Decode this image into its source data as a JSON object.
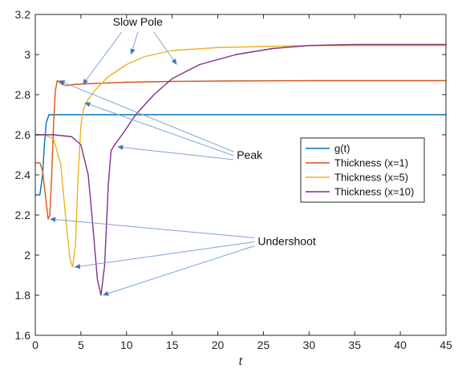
{
  "chart_data": {
    "type": "line",
    "title": "",
    "xlabel": "t",
    "ylabel": "",
    "xlim": [
      0,
      45
    ],
    "ylim": [
      1.6,
      3.2
    ],
    "xticks": [
      0,
      5,
      10,
      15,
      20,
      25,
      30,
      35,
      40,
      45
    ],
    "yticks": [
      1.6,
      1.8,
      2.0,
      2.2,
      2.4,
      2.6,
      2.8,
      3.0,
      3.2
    ],
    "ytick_labels": [
      "1.6",
      "1.8",
      "2",
      "2.2",
      "2.4",
      "2.6",
      "2.8",
      "3",
      "3.2"
    ],
    "grid": false,
    "legend_position": "right-middle",
    "series": [
      {
        "name": "g(t)",
        "color": "#0072BD",
        "x": [
          0,
          0.5,
          0.8,
          1.0,
          1.2,
          1.5,
          2.0,
          45
        ],
        "y": [
          2.3,
          2.3,
          2.4,
          2.55,
          2.66,
          2.7,
          2.7,
          2.7
        ]
      },
      {
        "name": "Thickness (x=1)",
        "color": "#D95319",
        "x": [
          0,
          0.5,
          0.8,
          1.1,
          1.4,
          1.6,
          1.8,
          2.0,
          2.2,
          2.4,
          2.7,
          3.0,
          3.5,
          4.0,
          6,
          10,
          15,
          20,
          30,
          45
        ],
        "y": [
          2.46,
          2.46,
          2.42,
          2.3,
          2.18,
          2.2,
          2.4,
          2.65,
          2.82,
          2.87,
          2.86,
          2.85,
          2.845,
          2.85,
          2.855,
          2.862,
          2.866,
          2.868,
          2.87,
          2.87
        ]
      },
      {
        "name": "Thickness (x=5)",
        "color": "#EDB120",
        "x": [
          0,
          1,
          2,
          2.8,
          3.3,
          3.8,
          4.1,
          4.4,
          4.7,
          5.0,
          5.3,
          5.7,
          6.5,
          8,
          10,
          12,
          15,
          20,
          25,
          30,
          45
        ],
        "y": [
          2.6,
          2.6,
          2.58,
          2.45,
          2.2,
          1.98,
          1.94,
          2.05,
          2.4,
          2.65,
          2.73,
          2.77,
          2.82,
          2.89,
          2.95,
          2.99,
          3.02,
          3.035,
          3.04,
          3.045,
          3.045
        ]
      },
      {
        "name": "Thickness (x=10)",
        "color": "#7E2F8E",
        "x": [
          0,
          2,
          4,
          5,
          5.8,
          6.3,
          6.8,
          7.2,
          7.6,
          8.0,
          8.3,
          8.7,
          9.5,
          11,
          13,
          15,
          18,
          22,
          26,
          30,
          35,
          45
        ],
        "y": [
          2.6,
          2.6,
          2.59,
          2.55,
          2.4,
          2.15,
          1.88,
          1.8,
          1.95,
          2.35,
          2.52,
          2.55,
          2.6,
          2.7,
          2.8,
          2.88,
          2.95,
          3.0,
          3.03,
          3.045,
          3.05,
          3.05
        ]
      }
    ],
    "annotations": [
      {
        "text": "Slow Pole",
        "anchor": [
          10,
          3.12
        ],
        "targets": [
          [
            5.2,
            2.85
          ],
          [
            10.5,
            3.0
          ],
          [
            15.5,
            2.95
          ]
        ]
      },
      {
        "text": "Peak",
        "anchor": [
          21.2,
          2.5
        ],
        "targets": [
          [
            2.6,
            2.87
          ],
          [
            5.4,
            2.76
          ],
          [
            9.0,
            2.54
          ]
        ]
      },
      {
        "text": "Undershoot",
        "anchor": [
          23.5,
          2.07
        ],
        "targets": [
          [
            1.6,
            2.18
          ],
          [
            4.3,
            1.94
          ],
          [
            7.4,
            1.8
          ]
        ]
      }
    ]
  }
}
